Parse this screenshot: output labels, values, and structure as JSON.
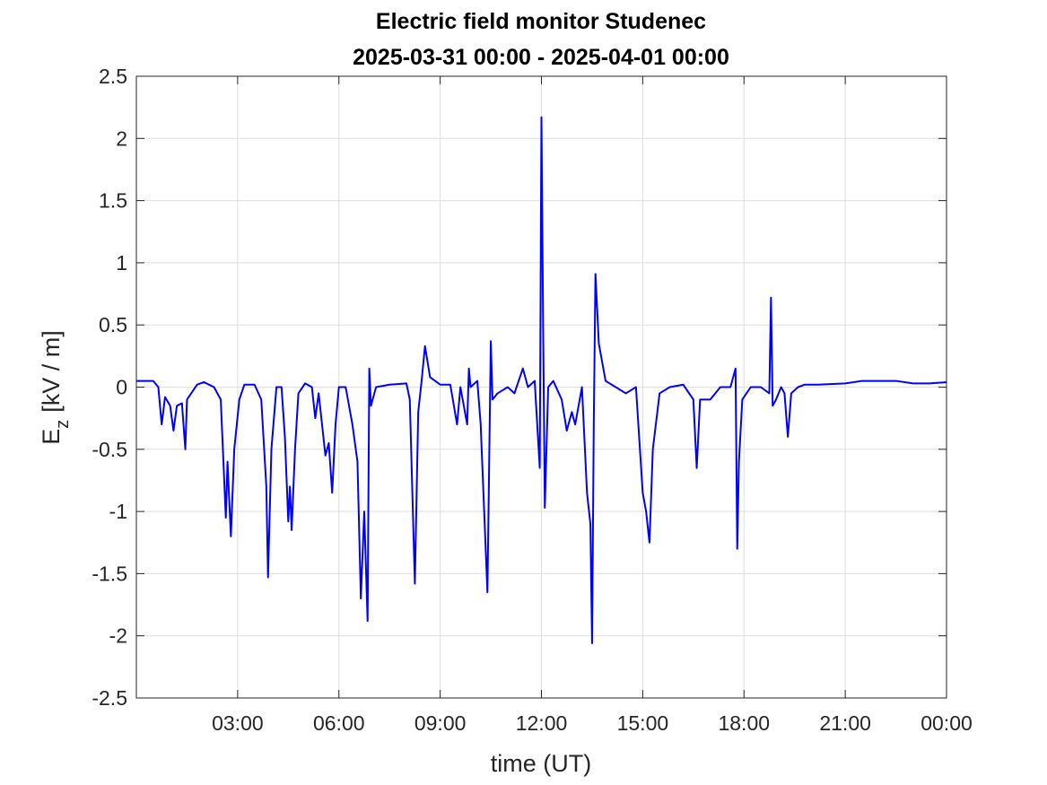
{
  "chart_data": {
    "type": "line",
    "title": "Electric field monitor Studenec",
    "subtitle": "2025-03-31 00:00 - 2025-04-01 00:00",
    "xlabel": "time (UT)",
    "ylabel": {
      "main": "E",
      "sub": "z",
      "rest": "[kV / m]"
    },
    "xlim": [
      0,
      24
    ],
    "xticks": [
      {
        "value": 3,
        "label": "03:00"
      },
      {
        "value": 6,
        "label": "06:00"
      },
      {
        "value": 9,
        "label": "09:00"
      },
      {
        "value": 12,
        "label": "12:00"
      },
      {
        "value": 15,
        "label": "15:00"
      },
      {
        "value": 18,
        "label": "18:00"
      },
      {
        "value": 21,
        "label": "21:00"
      },
      {
        "value": 24,
        "label": "00:00"
      }
    ],
    "ylim": [
      -2.5,
      2.5
    ],
    "yticks": [
      -2.5,
      -2,
      -1.5,
      -1,
      -0.5,
      0,
      0.5,
      1,
      1.5,
      2,
      2.5
    ],
    "grid": true,
    "x": [
      0,
      0.5,
      0.65,
      0.75,
      0.85,
      1.0,
      1.1,
      1.2,
      1.35,
      1.45,
      1.5,
      1.8,
      2.0,
      2.3,
      2.5,
      2.65,
      2.7,
      2.8,
      2.9,
      3.05,
      3.2,
      3.5,
      3.7,
      3.85,
      3.9,
      4.0,
      4.15,
      4.3,
      4.4,
      4.5,
      4.55,
      4.6,
      4.7,
      4.8,
      5.0,
      5.2,
      5.3,
      5.4,
      5.5,
      5.6,
      5.7,
      5.8,
      5.9,
      6.0,
      6.2,
      6.4,
      6.55,
      6.65,
      6.75,
      6.85,
      6.9,
      6.95,
      7.1,
      7.5,
      8.0,
      8.1,
      8.25,
      8.35,
      8.45,
      8.55,
      8.7,
      9.0,
      9.3,
      9.5,
      9.6,
      9.8,
      9.85,
      9.9,
      10.1,
      10.2,
      10.4,
      10.5,
      10.55,
      10.7,
      11.0,
      11.2,
      11.45,
      11.6,
      11.8,
      11.95,
      12.0,
      12.05,
      12.1,
      12.2,
      12.35,
      12.6,
      12.75,
      12.9,
      13.0,
      13.2,
      13.35,
      13.45,
      13.5,
      13.55,
      13.6,
      13.7,
      13.9,
      14.2,
      14.5,
      14.8,
      15.0,
      15.1,
      15.2,
      15.3,
      15.5,
      15.8,
      16.2,
      16.5,
      16.6,
      16.7,
      17.0,
      17.3,
      17.6,
      17.75,
      17.8,
      17.85,
      17.95,
      18.2,
      18.5,
      18.75,
      18.8,
      18.85,
      18.95,
      19.1,
      19.2,
      19.3,
      19.4,
      19.6,
      19.8,
      20.2,
      21.0,
      21.5,
      22.0,
      22.5,
      23.0,
      23.5,
      24.0
    ],
    "series": [
      {
        "name": "Ez",
        "color": "#0000ff",
        "values": [
          0.05,
          0.05,
          0.0,
          -0.3,
          -0.08,
          -0.15,
          -0.35,
          -0.15,
          -0.13,
          -0.5,
          -0.1,
          0.02,
          0.04,
          0.0,
          -0.1,
          -1.05,
          -0.6,
          -1.2,
          -0.5,
          -0.1,
          0.02,
          0.02,
          -0.1,
          -0.8,
          -1.53,
          -0.5,
          0.0,
          0.0,
          -0.4,
          -1.08,
          -0.8,
          -1.15,
          -0.5,
          -0.05,
          0.03,
          0.0,
          -0.25,
          -0.05,
          -0.3,
          -0.55,
          -0.45,
          -0.85,
          -0.3,
          0.0,
          0.0,
          -0.3,
          -0.6,
          -1.7,
          -1.0,
          -1.88,
          0.15,
          -0.15,
          0.0,
          0.02,
          0.03,
          -0.1,
          -1.58,
          -0.2,
          0.05,
          0.33,
          0.08,
          0.02,
          0.02,
          -0.3,
          0.0,
          -0.3,
          0.15,
          0.0,
          0.05,
          -0.3,
          -1.65,
          0.37,
          -0.1,
          -0.05,
          0.0,
          -0.05,
          0.15,
          0.0,
          0.05,
          -0.65,
          2.17,
          0.5,
          -0.97,
          0.0,
          0.05,
          -0.1,
          -0.35,
          -0.2,
          -0.3,
          0.0,
          -0.85,
          -1.1,
          -2.06,
          -0.3,
          0.91,
          0.35,
          0.05,
          0.0,
          -0.05,
          0.0,
          -0.85,
          -1.0,
          -1.25,
          -0.5,
          -0.05,
          0.0,
          0.02,
          -0.1,
          -0.65,
          -0.1,
          -0.1,
          0.0,
          0.0,
          0.15,
          -1.3,
          -0.6,
          -0.1,
          0.0,
          0.0,
          -0.05,
          0.72,
          -0.15,
          -0.1,
          0.0,
          -0.05,
          -0.4,
          -0.05,
          0.0,
          0.02,
          0.02,
          0.03,
          0.05,
          0.05,
          0.05,
          0.03,
          0.03,
          0.04
        ]
      }
    ]
  }
}
